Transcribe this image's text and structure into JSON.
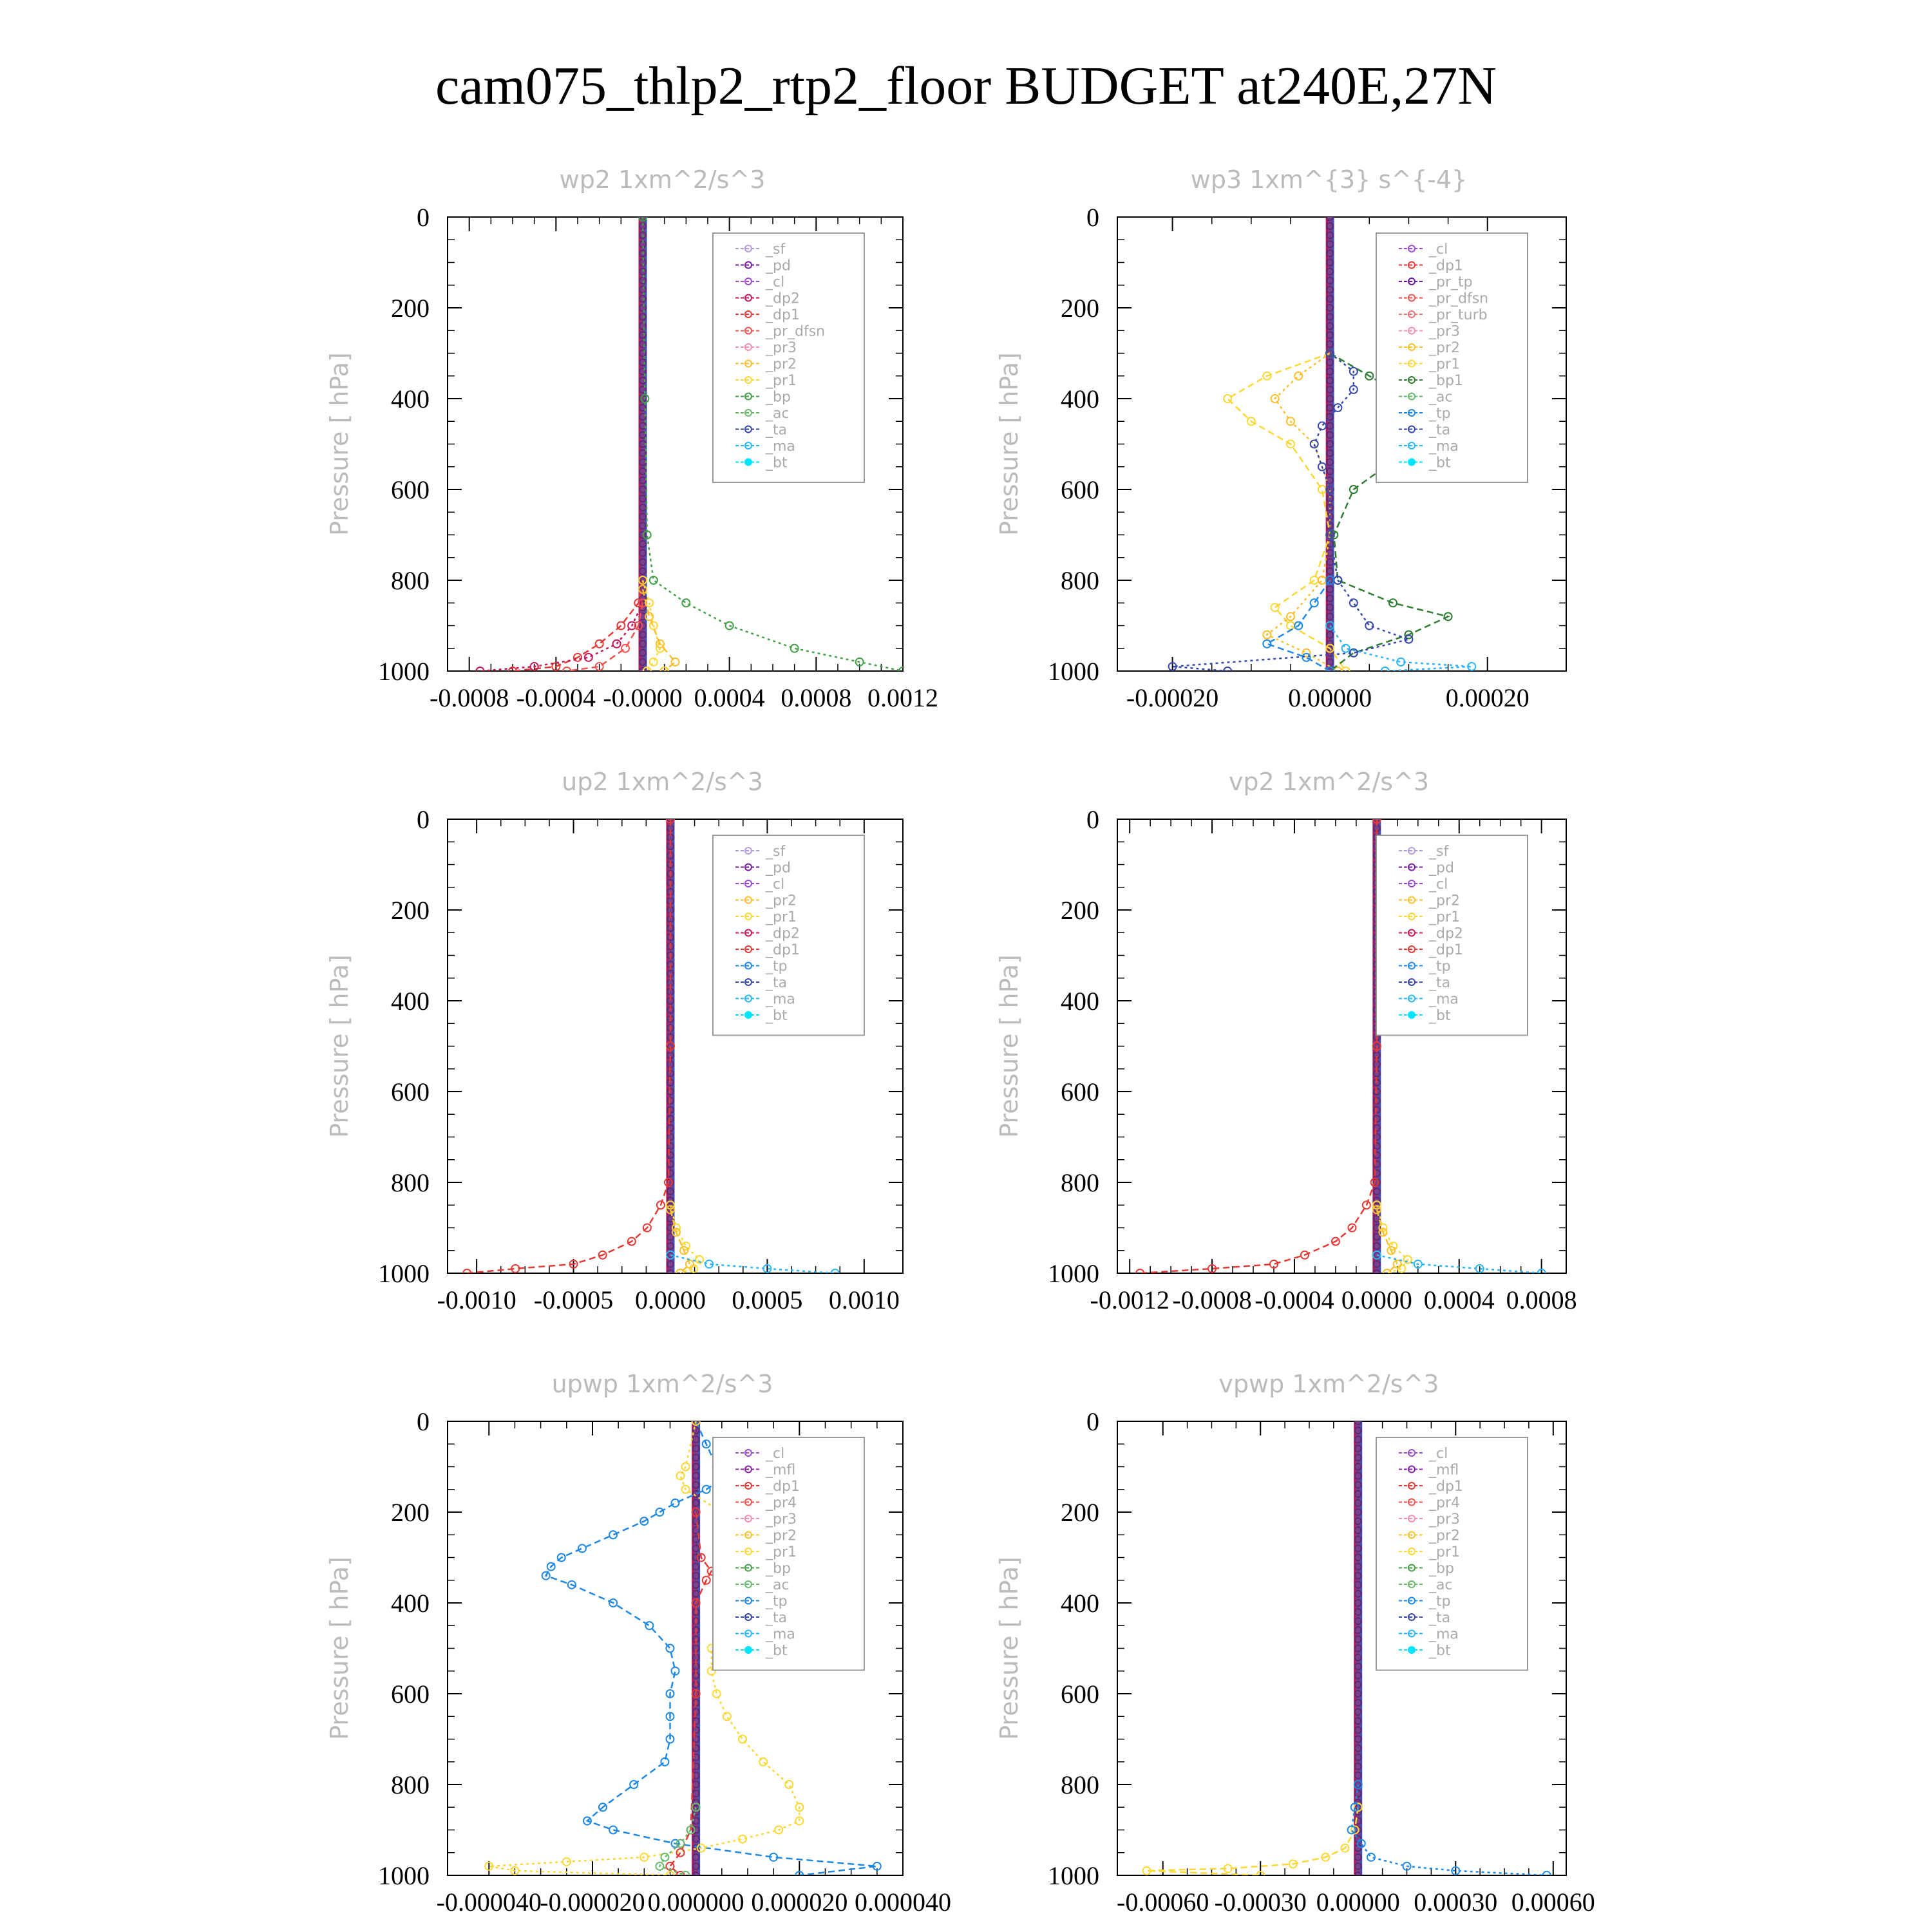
{
  "title": "cam075_thlp2_rtp2_floor  BUDGET at240E,27N",
  "chart_data": [
    {
      "type": "line",
      "title": "wp2   1xm^2/s^3",
      "ylabel": "Pressure  [ hPa]",
      "xlim": [
        -0.0009,
        0.0012
      ],
      "ylim": [
        1000,
        0
      ],
      "xticks": [
        "-0.0008",
        "-0.0004",
        "-0.0000",
        "0.0004",
        "0.0008",
        "0.0012"
      ],
      "xtick_values": [
        -0.0008,
        -0.0004,
        0.0,
        0.0004,
        0.0008,
        0.0012
      ],
      "yticks": [
        0,
        200,
        400,
        600,
        800,
        1000
      ],
      "legend": [
        "_sf",
        "_pd",
        "_cl",
        "_dp2",
        "_dp1",
        "_pr_dfsn",
        "_pr3",
        "_pr2",
        "_pr1",
        "_bp",
        "_ac",
        "_ta",
        "_ma",
        "_bt"
      ],
      "legend_position": "top-right",
      "series": [
        {
          "name": "_dp1",
          "y": [
            800,
            850,
            900,
            940,
            970,
            990,
            1000
          ],
          "values": [
            0,
            -2e-05,
            -0.0001,
            -0.0002,
            -0.0003,
            -0.0004,
            -0.0006
          ]
        },
        {
          "name": "_dp2",
          "y": [
            850,
            900,
            940,
            970,
            990,
            1000
          ],
          "values": [
            0,
            -5e-05,
            -0.00012,
            -0.00025,
            -0.0005,
            -0.00075
          ]
        },
        {
          "name": "_pr_dfsn",
          "y": [
            850,
            900,
            950,
            990,
            1000
          ],
          "values": [
            0,
            -2e-05,
            -8e-05,
            -0.0002,
            -0.00035
          ]
        },
        {
          "name": "_pr1",
          "y": [
            800,
            850,
            900,
            950,
            980,
            1000
          ],
          "values": [
            0,
            3e-05,
            5e-05,
            8e-05,
            5e-05,
            2e-05
          ]
        },
        {
          "name": "_pr2",
          "y": [
            820,
            880,
            940,
            980,
            1000
          ],
          "values": [
            0,
            3e-05,
            8e-05,
            0.00015,
            0.0001
          ]
        },
        {
          "name": "_bp",
          "y": [
            0,
            400,
            700,
            800,
            850,
            900,
            950,
            980,
            1000
          ],
          "values": [
            0,
            1e-05,
            2e-05,
            5e-05,
            0.0002,
            0.0004,
            0.0007,
            0.001,
            0.0012
          ]
        },
        {
          "name": "_bt",
          "y": [
            0,
            500,
            1000
          ],
          "values": [
            0,
            0,
            0
          ]
        }
      ]
    },
    {
      "type": "line",
      "title": "wp3   1xm^{3} s^{-4}",
      "ylabel": "Pressure  [ hPa]",
      "xlim": [
        -0.00027,
        0.0003
      ],
      "ylim": [
        1000,
        0
      ],
      "xticks": [
        "-0.00020",
        "0.00000",
        "0.00020"
      ],
      "xtick_values": [
        -0.0002,
        0.0,
        0.0002
      ],
      "yticks": [
        0,
        200,
        400,
        600,
        800,
        1000
      ],
      "legend": [
        "_cl",
        "_dp1",
        "_pr_tp",
        "_pr_dfsn",
        "_pr_turb",
        "_pr3",
        "_pr2",
        "_pr1",
        "_bp1",
        "_ac",
        "_tp",
        "_ta",
        "_ma",
        "_bt"
      ],
      "legend_position": "top-right",
      "series": [
        {
          "name": "_pr1",
          "y": [
            300,
            350,
            400,
            450,
            500,
            600,
            700,
            800,
            860,
            900,
            950,
            1000
          ],
          "values": [
            0,
            -8e-05,
            -0.00013,
            -0.0001,
            -5e-05,
            -1e-05,
            0,
            -2e-05,
            -7e-05,
            -5e-05,
            0,
            2e-05
          ]
        },
        {
          "name": "_pr2",
          "y": [
            300,
            350,
            400,
            450,
            500,
            600,
            700,
            800,
            880,
            920,
            960,
            1000
          ],
          "values": [
            0,
            -4e-05,
            -7e-05,
            -5e-05,
            -2e-05,
            0,
            0,
            -1e-05,
            -5e-05,
            -8e-05,
            -3e-05,
            1e-05
          ]
        },
        {
          "name": "_bp1",
          "y": [
            300,
            350,
            400,
            450,
            500,
            550,
            600,
            700,
            800,
            850,
            880,
            920,
            960,
            1000
          ],
          "values": [
            0,
            5e-05,
            0.0001,
            0.00015,
            0.00012,
            7e-05,
            3e-05,
            5e-06,
            1e-05,
            8e-05,
            0.00015,
            0.0001,
            3e-05,
            0
          ]
        },
        {
          "name": "_ta",
          "y": [
            300,
            340,
            380,
            420,
            460,
            500,
            550,
            600,
            700,
            800,
            850,
            900,
            930,
            960,
            990,
            1000
          ],
          "values": [
            0,
            3e-05,
            3e-05,
            1e-05,
            -1e-05,
            -2e-05,
            -1e-05,
            0,
            0,
            1e-05,
            3e-05,
            5e-05,
            0.0001,
            3e-05,
            -0.0002,
            -0.00013
          ]
        },
        {
          "name": "_tp",
          "y": [
            800,
            850,
            900,
            940,
            970,
            1000
          ],
          "values": [
            0,
            -2e-05,
            -4e-05,
            -8e-05,
            -3e-05,
            0
          ]
        },
        {
          "name": "_ma",
          "y": [
            900,
            950,
            980,
            990,
            1000
          ],
          "values": [
            0,
            2e-05,
            9e-05,
            0.00018,
            7e-05
          ]
        },
        {
          "name": "_bt",
          "y": [
            0,
            500,
            1000
          ],
          "values": [
            0,
            0,
            0
          ]
        }
      ]
    },
    {
      "type": "line",
      "title": "up2   1xm^2/s^3",
      "ylabel": "Pressure  [ hPa]",
      "xlim": [
        -0.00115,
        0.0012
      ],
      "ylim": [
        1000,
        0
      ],
      "xticks": [
        "-0.0010",
        "-0.0005",
        "0.0000",
        "0.0005",
        "0.0010"
      ],
      "xtick_values": [
        -0.001,
        -0.0005,
        0.0,
        0.0005,
        0.001
      ],
      "yticks": [
        0,
        200,
        400,
        600,
        800,
        1000
      ],
      "legend": [
        "_sf",
        "_pd",
        "_cl",
        "_pr2",
        "_pr1",
        "_dp2",
        "_dp1",
        "_tp",
        "_ta",
        "_ma",
        "_bt"
      ],
      "legend_position": "top-right",
      "series": [
        {
          "name": "_dp1",
          "y": [
            0,
            500,
            800,
            850,
            900,
            930,
            960,
            980,
            990,
            1000
          ],
          "values": [
            0,
            0,
            -1e-05,
            -5e-05,
            -0.00012,
            -0.0002,
            -0.00035,
            -0.0005,
            -0.0008,
            -0.00105
          ]
        },
        {
          "name": "_pr1",
          "y": [
            850,
            900,
            940,
            970,
            990,
            1000
          ],
          "values": [
            0,
            3e-05,
            8e-05,
            0.00015,
            0.00012,
            5e-05
          ]
        },
        {
          "name": "_pr2",
          "y": [
            860,
            910,
            950,
            980,
            1000
          ],
          "values": [
            0,
            3e-05,
            7e-05,
            0.0001,
            5e-05
          ]
        },
        {
          "name": "_ma",
          "y": [
            960,
            980,
            990,
            1000
          ],
          "values": [
            0,
            0.0002,
            0.0005,
            0.00085
          ]
        },
        {
          "name": "_bt",
          "y": [
            0,
            500,
            1000
          ],
          "values": [
            0,
            0,
            0
          ]
        }
      ]
    },
    {
      "type": "line",
      "title": "vp2   1xm^2/s^3",
      "ylabel": "Pressure  [ hPa]",
      "xlim": [
        -0.00126,
        0.00092
      ],
      "ylim": [
        1000,
        0
      ],
      "xticks": [
        "-0.0012",
        "-0.0008",
        "-0.0004",
        "0.0000",
        "0.0004",
        "0.0008"
      ],
      "xtick_values": [
        -0.0012,
        -0.0008,
        -0.0004,
        0.0,
        0.0004,
        0.0008
      ],
      "yticks": [
        0,
        200,
        400,
        600,
        800,
        1000
      ],
      "legend": [
        "_sf",
        "_pd",
        "_cl",
        "_pr2",
        "_pr1",
        "_dp2",
        "_dp1",
        "_tp",
        "_ta",
        "_ma",
        "_bt"
      ],
      "legend_position": "top-right",
      "series": [
        {
          "name": "_dp1",
          "y": [
            0,
            500,
            800,
            850,
            900,
            930,
            960,
            980,
            990,
            1000
          ],
          "values": [
            0,
            0,
            -1e-05,
            -5e-05,
            -0.00012,
            -0.0002,
            -0.00035,
            -0.0005,
            -0.0008,
            -0.00115
          ]
        },
        {
          "name": "_pr1",
          "y": [
            850,
            900,
            940,
            970,
            990,
            1000
          ],
          "values": [
            0,
            3e-05,
            8e-05,
            0.00015,
            0.00012,
            5e-05
          ]
        },
        {
          "name": "_pr2",
          "y": [
            860,
            910,
            950,
            980,
            1000
          ],
          "values": [
            0,
            3e-05,
            7e-05,
            0.0001,
            5e-05
          ]
        },
        {
          "name": "_ma",
          "y": [
            960,
            980,
            990,
            1000
          ],
          "values": [
            0,
            0.0002,
            0.0005,
            0.0008
          ]
        },
        {
          "name": "_bt",
          "y": [
            0,
            500,
            1000
          ],
          "values": [
            0,
            0,
            0
          ]
        }
      ]
    },
    {
      "type": "line",
      "title": "upwp   1xm^2/s^3",
      "ylabel": "Pressure  [ hPa]",
      "xlim": [
        -4.8e-05,
        4e-05
      ],
      "ylim": [
        1000,
        0
      ],
      "xticks": [
        "-0.000040",
        "-0.000020",
        "0.000000",
        "0.000020",
        "0.000040"
      ],
      "xtick_values": [
        -4e-05,
        -2e-05,
        0.0,
        2e-05,
        4e-05
      ],
      "yticks": [
        0,
        200,
        400,
        600,
        800,
        1000
      ],
      "legend": [
        "_cl",
        "_mfl",
        "_dp1",
        "_pr4",
        "_pr3",
        "_pr2",
        "_pr1",
        "_bp",
        "_ac",
        "_tp",
        "_ta",
        "_ma",
        "_bt"
      ],
      "legend_position": "top-right",
      "series": [
        {
          "name": "_tp",
          "y": [
            0,
            50,
            100,
            120,
            150,
            180,
            200,
            220,
            250,
            280,
            300,
            320,
            340,
            360,
            400,
            450,
            500,
            550,
            600,
            650,
            700,
            750,
            800,
            850,
            880,
            900,
            930,
            960,
            980,
            1000
          ],
          "values": [
            0,
            2e-06,
            4e-06,
            6e-06,
            2e-06,
            -4e-06,
            -7e-06,
            -1e-05,
            -1.6e-05,
            -2.2e-05,
            -2.6e-05,
            -2.8e-05,
            -2.9e-05,
            -2.4e-05,
            -1.6e-05,
            -9e-06,
            -5e-06,
            -4e-06,
            -5e-06,
            -5e-06,
            -5e-06,
            -6e-06,
            -1.2e-05,
            -1.8e-05,
            -2.1e-05,
            -1.6e-05,
            -4e-06,
            1.5e-05,
            3.5e-05,
            2e-05
          ]
        },
        {
          "name": "_pr1",
          "y": [
            0,
            100,
            120,
            150,
            200,
            250,
            280,
            300,
            330,
            360,
            400,
            450,
            500,
            550,
            600,
            650,
            700,
            750,
            800,
            850,
            880,
            900,
            920,
            940,
            960,
            970,
            980,
            990,
            1000
          ],
          "values": [
            0,
            -2e-06,
            -3e-06,
            -2e-06,
            5e-06,
            1.2e-05,
            1.7e-05,
            1.9e-05,
            1.9e-05,
            1.6e-05,
            1.2e-05,
            6e-06,
            3e-06,
            3e-06,
            4e-06,
            6e-06,
            9e-06,
            1.3e-05,
            1.8e-05,
            2e-05,
            2e-05,
            1.6e-05,
            9e-06,
            1e-06,
            -1e-05,
            -2.5e-05,
            -4e-05,
            -3.5e-05,
            -5e-06
          ]
        },
        {
          "name": "_dp1",
          "y": [
            200,
            300,
            330,
            350,
            400,
            600,
            900,
            950,
            980,
            1000
          ],
          "values": [
            0,
            1e-06,
            3e-06,
            2e-06,
            0,
            0,
            -1e-06,
            -3e-06,
            -5e-06,
            -3e-06
          ]
        },
        {
          "name": "_ac",
          "y": [
            850,
            900,
            930,
            960,
            980,
            1000
          ],
          "values": [
            0,
            -1e-06,
            -3e-06,
            -6e-06,
            -7e-06,
            -2e-06
          ]
        },
        {
          "name": "_bt",
          "y": [
            0,
            500,
            1000
          ],
          "values": [
            0,
            0,
            0
          ]
        }
      ]
    },
    {
      "type": "line",
      "title": "vpwp   1xm^2/s^3",
      "ylabel": "Pressure  [ hPa]",
      "xlim": [
        -0.00074,
        0.00064
      ],
      "ylim": [
        1000,
        0
      ],
      "xticks": [
        "-0.00060",
        "-0.00030",
        "0.00000",
        "0.00030",
        "0.00060"
      ],
      "xtick_values": [
        -0.0006,
        -0.0003,
        0.0,
        0.0003,
        0.0006
      ],
      "yticks": [
        0,
        200,
        400,
        600,
        800,
        1000
      ],
      "legend": [
        "_cl",
        "_mfl",
        "_dp1",
        "_pr4",
        "_pr3",
        "_pr2",
        "_pr1",
        "_bp",
        "_ac",
        "_tp",
        "_ta",
        "_ma",
        "_bt"
      ],
      "legend_position": "top-right",
      "series": [
        {
          "name": "_pr1",
          "y": [
            850,
            900,
            940,
            960,
            975,
            985,
            990,
            1000
          ],
          "values": [
            0,
            -1e-05,
            -4e-05,
            -0.0001,
            -0.0002,
            -0.0004,
            -0.00065,
            -0.0003
          ]
        },
        {
          "name": "_tp",
          "y": [
            800,
            850,
            900,
            930,
            960,
            980,
            990,
            1000
          ],
          "values": [
            0,
            -1e-05,
            -2e-05,
            1e-05,
            4e-05,
            0.00015,
            0.0003,
            0.00058
          ]
        },
        {
          "name": "_bt",
          "y": [
            0,
            500,
            1000
          ],
          "values": [
            0,
            0,
            0
          ]
        }
      ]
    }
  ]
}
